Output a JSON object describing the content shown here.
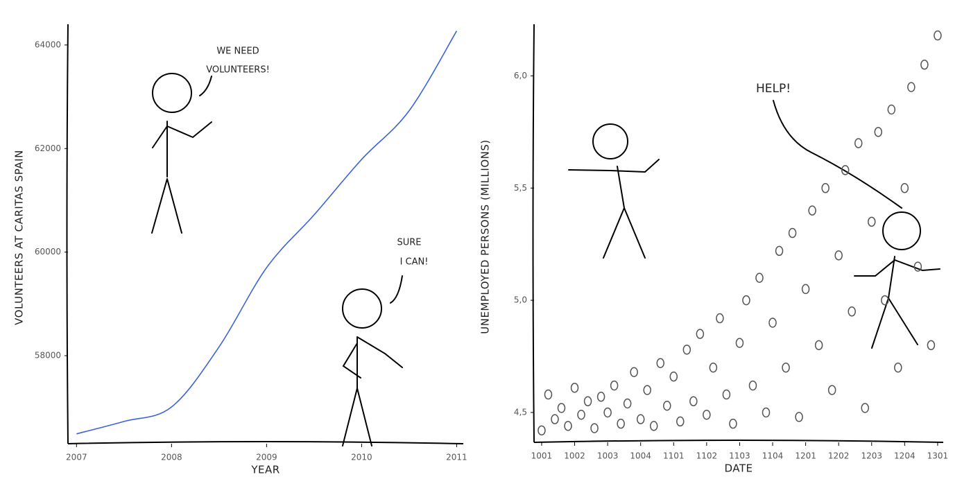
{
  "chart_data": [
    {
      "type": "line",
      "x_label": "YEAR",
      "y_label": "VOLUNTEERS AT CARITAS SPAIN",
      "x": [
        2007,
        2007.5,
        2008,
        2008.5,
        2009,
        2009.5,
        2010,
        2010.5,
        2011
      ],
      "values": [
        56490,
        56730,
        57010,
        58170,
        59700,
        60720,
        61790,
        62730,
        64270
      ],
      "color": "#3b63d9",
      "xlim": [
        2006.91,
        2011.07
      ],
      "xticks": [
        2007,
        2008,
        2009,
        2010,
        2011
      ],
      "ylim": [
        56300,
        64400
      ],
      "yticks": [
        58000,
        60000,
        62000,
        64000
      ],
      "annotations": [
        "WE NEED",
        "VOLUNTEERS!",
        "SURE",
        "I CAN!"
      ]
    },
    {
      "type": "scatter",
      "x_label": "DATE",
      "y_label": "UNEMPLOYED PERSONS (MILLIONS)",
      "x": [
        0,
        0.2,
        0.4,
        0.6,
        0.8,
        1,
        1.2,
        1.4,
        1.6,
        1.8,
        2,
        2.2,
        2.4,
        2.6,
        2.8,
        3,
        3.2,
        3.4,
        3.6,
        3.8,
        4,
        4.2,
        4.4,
        4.6,
        4.8,
        5,
        5.2,
        5.4,
        5.6,
        5.8,
        6,
        6.2,
        6.4,
        6.6,
        6.8,
        7,
        7.2,
        7.4,
        7.6,
        7.8,
        8,
        8.2,
        8.4,
        8.6,
        8.8,
        9,
        9.2,
        9.4,
        9.6,
        9.8,
        10,
        10.2,
        10.4,
        10.6,
        10.8,
        11,
        11.2,
        11.4,
        11.6,
        11.8,
        12
      ],
      "values": [
        4.42,
        4.58,
        4.47,
        4.52,
        4.44,
        4.61,
        4.49,
        4.55,
        4.43,
        4.57,
        4.5,
        4.62,
        4.45,
        4.54,
        4.68,
        4.47,
        4.6,
        4.44,
        4.72,
        4.53,
        4.66,
        4.46,
        4.78,
        4.55,
        4.85,
        4.49,
        4.7,
        4.92,
        4.58,
        4.45,
        4.81,
        5.0,
        4.62,
        5.1,
        4.5,
        4.9,
        5.22,
        4.7,
        5.3,
        4.48,
        5.05,
        5.4,
        4.8,
        5.5,
        4.6,
        5.2,
        5.58,
        4.95,
        5.7,
        4.52,
        5.35,
        5.75,
        5.0,
        5.85,
        4.7,
        5.5,
        5.95,
        5.15,
        6.05,
        4.8,
        6.18
      ],
      "color": "#555555",
      "xlim": [
        -0.23,
        12.17
      ],
      "xticks": [
        {
          "value": 0,
          "label": "1001"
        },
        {
          "value": 1,
          "label": "1002"
        },
        {
          "value": 2,
          "label": "1003"
        },
        {
          "value": 3,
          "label": "1004"
        },
        {
          "value": 4,
          "label": "1101"
        },
        {
          "value": 5,
          "label": "1102"
        },
        {
          "value": 6,
          "label": "1103"
        },
        {
          "value": 7,
          "label": "1104"
        },
        {
          "value": 8,
          "label": "1201"
        },
        {
          "value": 9,
          "label": "1202"
        },
        {
          "value": 10,
          "label": "1203"
        },
        {
          "value": 11,
          "label": "1204"
        },
        {
          "value": 12,
          "label": "1301"
        }
      ],
      "ylim": [
        4.367,
        6.23
      ],
      "yticks": [
        {
          "value": 4.5,
          "label": "4,5"
        },
        {
          "value": 5.0,
          "label": "5,0"
        },
        {
          "value": 5.5,
          "label": "5,5"
        },
        {
          "value": 6.0,
          "label": "6,0"
        }
      ],
      "annotations": [
        "HELP!"
      ]
    }
  ]
}
